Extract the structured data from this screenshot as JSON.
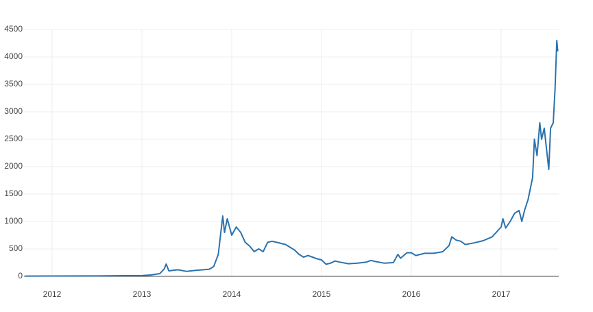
{
  "chart_data": {
    "type": "line",
    "color": "#2a72ae",
    "x": [
      2011.7,
      2012.0,
      2012.5,
      2012.8,
      2013.0,
      2013.1,
      2013.2,
      2013.25,
      2013.27,
      2013.3,
      2013.4,
      2013.5,
      2013.6,
      2013.75,
      2013.8,
      2013.85,
      2013.9,
      2013.92,
      2013.95,
      2014.0,
      2014.05,
      2014.1,
      2014.15,
      2014.2,
      2014.25,
      2014.3,
      2014.35,
      2014.4,
      2014.45,
      2014.5,
      2014.55,
      2014.6,
      2014.7,
      2014.75,
      2014.8,
      2014.85,
      2014.9,
      2014.95,
      2015.0,
      2015.05,
      2015.1,
      2015.15,
      2015.2,
      2015.3,
      2015.4,
      2015.5,
      2015.55,
      2015.6,
      2015.7,
      2015.8,
      2015.85,
      2015.88,
      2015.95,
      2016.0,
      2016.05,
      2016.15,
      2016.25,
      2016.35,
      2016.42,
      2016.45,
      2016.5,
      2016.55,
      2016.6,
      2016.7,
      2016.8,
      2016.9,
      2017.0,
      2017.02,
      2017.05,
      2017.1,
      2017.15,
      2017.2,
      2017.23,
      2017.26,
      2017.3,
      2017.35,
      2017.37,
      2017.4,
      2017.43,
      2017.45,
      2017.48,
      2017.5,
      2017.53,
      2017.55,
      2017.58,
      2017.6,
      2017.62,
      2017.63
    ],
    "values": [
      5,
      6,
      7,
      12,
      14,
      25,
      50,
      140,
      225,
      100,
      120,
      90,
      110,
      130,
      180,
      400,
      1100,
      800,
      1050,
      750,
      900,
      800,
      620,
      550,
      450,
      500,
      450,
      620,
      640,
      620,
      600,
      580,
      480,
      400,
      350,
      380,
      350,
      320,
      300,
      220,
      240,
      280,
      260,
      230,
      240,
      260,
      290,
      270,
      240,
      250,
      400,
      330,
      430,
      430,
      380,
      420,
      420,
      450,
      560,
      720,
      660,
      640,
      580,
      610,
      650,
      720,
      900,
      1050,
      880,
      1000,
      1150,
      1200,
      1000,
      1200,
      1400,
      1800,
      2500,
      2200,
      2800,
      2500,
      2700,
      2400,
      1950,
      2700,
      2800,
      3400,
      4300,
      4100
    ],
    "xlim": [
      2011.687,
      2017.641
    ],
    "xticks": [
      2012,
      2013,
      2014,
      2015,
      2016,
      2017
    ],
    "ylim": [
      0,
      4500
    ],
    "yticks": [
      0,
      500,
      1000,
      1500,
      2000,
      2500,
      3000,
      3500,
      4000,
      4500
    ],
    "grid": true
  }
}
